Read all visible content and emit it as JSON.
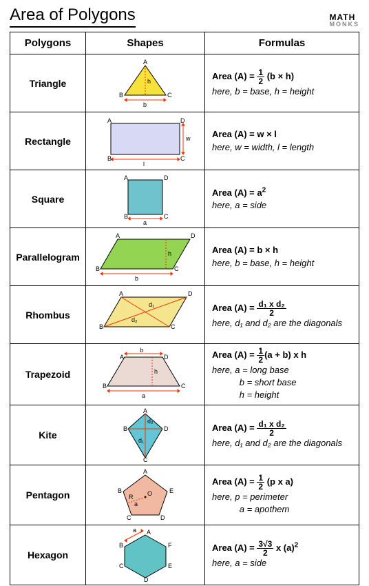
{
  "title": "Area of Polygons",
  "logo": {
    "top": "MATH",
    "bottom": "MONKS"
  },
  "headers": {
    "polygons": "Polygons",
    "shapes": "Shapes",
    "formulas": "Formulas"
  },
  "rows": [
    {
      "name": "Triangle",
      "color": "#f7e23c",
      "formula_lead": "Area (A) = ",
      "frac": {
        "num": "1",
        "den": "2"
      },
      "formula_tail": " (b × h)",
      "here": "here,  b = base, h = height"
    },
    {
      "name": "Rectangle",
      "color": "#d8daf5",
      "formula_lead": "Area (A) = ",
      "formula_tail": "w × l",
      "here": "here,  w = width, l = length"
    },
    {
      "name": "Square",
      "color": "#6fc3cc",
      "formula_lead": "Area (A) = ",
      "formula_tail": "a",
      "sup": "2",
      "here": "here,  a = side"
    },
    {
      "name": "Parallelogram",
      "color": "#93d452",
      "formula_lead": "Area (A) = ",
      "formula_tail": "b × h",
      "here": "here,  b = base, h = height"
    },
    {
      "name": "Rhombus",
      "color": "#f5e58e",
      "formula_lead": "Area (A) = ",
      "frac": {
        "num": "d₁ x d₂",
        "den": "2"
      },
      "here": "here,  d₁ and d₂ are the diagonals"
    },
    {
      "name": "Trapezoid",
      "color": "#ebd9d4",
      "formula_lead": "Area (A) = ",
      "frac": {
        "num": "1",
        "den": "2"
      },
      "formula_tail": "(a + b) x h",
      "here": "here,  a = long base\n           b = short base\n           h = height"
    },
    {
      "name": "Kite",
      "color": "#63c6d6",
      "formula_lead": "Area (A) = ",
      "frac": {
        "num": "d₁ x d₂",
        "den": "2"
      },
      "here": "here,  d₁ and d₂ are the diagonals"
    },
    {
      "name": "Pentagon",
      "color": "#f2b9a2",
      "formula_lead": "Area (A) = ",
      "frac": {
        "num": "1",
        "den": "2"
      },
      "formula_tail": " (p x a)",
      "here": "here,  p = perimeter\n           a = apothem"
    },
    {
      "name": "Hexagon",
      "color": "#62c3c6",
      "formula_lead": "Area (A) = ",
      "frac": {
        "num": "3√3",
        "den": "2"
      },
      "formula_tail": " x (a)",
      "sup": "2",
      "here": "here,  a = side"
    }
  ]
}
